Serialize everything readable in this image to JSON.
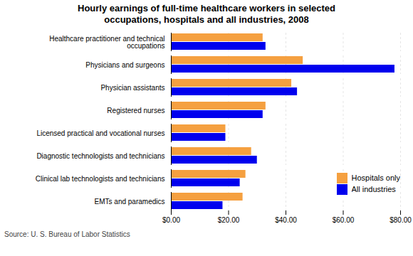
{
  "chart_data": {
    "type": "bar",
    "orientation": "horizontal",
    "title": "Hourly earnings of full-time healthcare workers in selected\noccupations, hospitals and all industries, 2008",
    "categories": [
      "Healthcare practitioner and technical\noccupations",
      "Physicians and surgeons",
      "Physician assistants",
      "Registered nurses",
      "Licensed practical and vocational nurses",
      "Diagnostic technologists and technicians",
      "Clinical lab technologists and technicians",
      "EMTs and paramedics"
    ],
    "series": [
      {
        "name": "Hospitals only",
        "color": "#F5A040",
        "values": [
          32,
          46,
          42,
          33,
          19,
          28,
          26,
          25
        ]
      },
      {
        "name": "All industries",
        "color": "#0000EE",
        "values": [
          33,
          78,
          44,
          32,
          19,
          30,
          24,
          18
        ]
      }
    ],
    "xlim": [
      0,
      80
    ],
    "xticks": [
      {
        "value": 0,
        "label": "$0.00"
      },
      {
        "value": 20,
        "label": "$20.00"
      },
      {
        "value": 40,
        "label": "$40.00"
      },
      {
        "value": 60,
        "label": "$60.00"
      },
      {
        "value": 80,
        "label": "$80.00"
      }
    ],
    "grid": true,
    "legend": "right",
    "annotations": [
      "Source: U. S. Bureau of Labor Statistics"
    ]
  }
}
